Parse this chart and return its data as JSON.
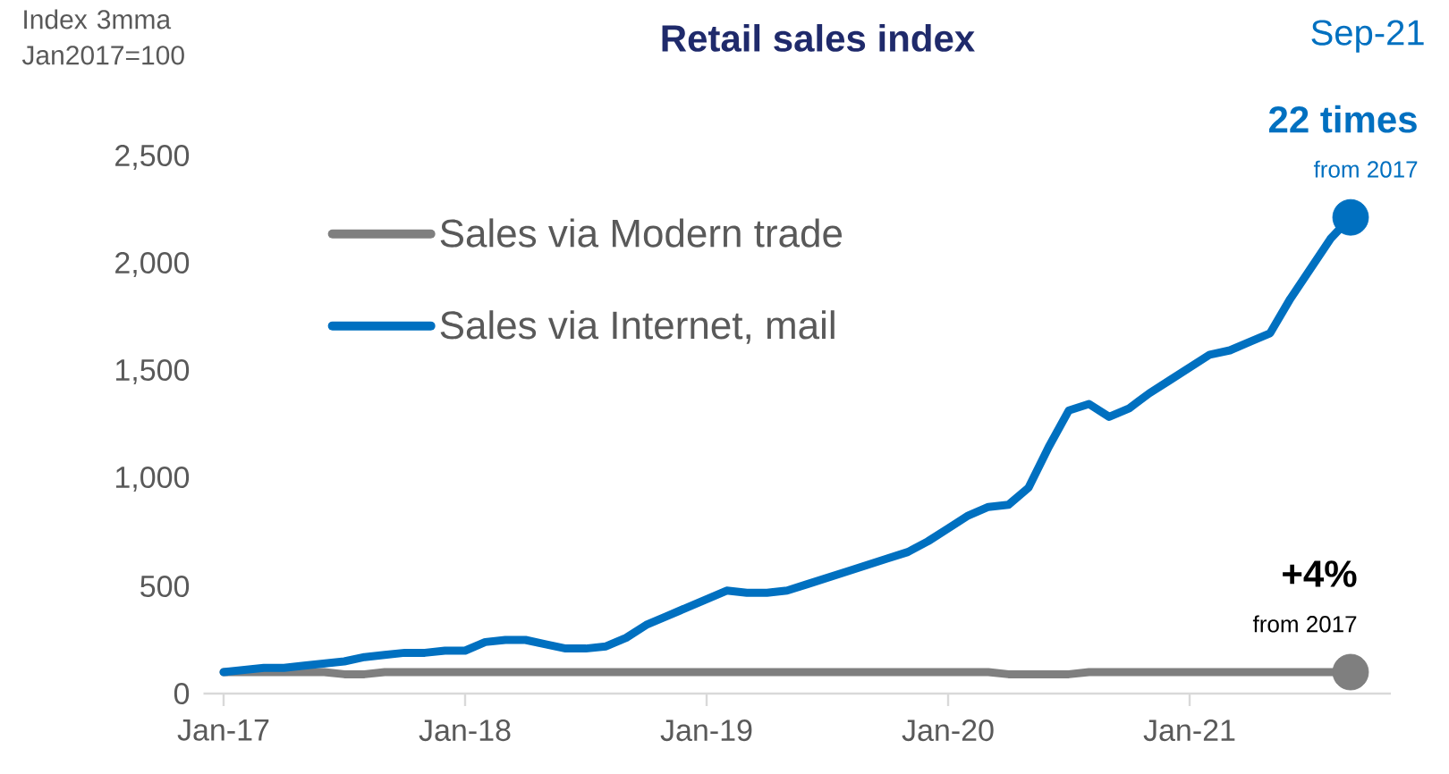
{
  "chart_data": {
    "type": "line",
    "title": "Retail sales index",
    "ylabel": "Index 3mma Jan2017=100",
    "x": [
      "2017-01",
      "2017-02",
      "2017-03",
      "2017-04",
      "2017-05",
      "2017-06",
      "2017-07",
      "2017-08",
      "2017-09",
      "2017-10",
      "2017-11",
      "2017-12",
      "2018-01",
      "2018-02",
      "2018-03",
      "2018-04",
      "2018-05",
      "2018-06",
      "2018-07",
      "2018-08",
      "2018-09",
      "2018-10",
      "2018-11",
      "2018-12",
      "2019-01",
      "2019-02",
      "2019-03",
      "2019-04",
      "2019-05",
      "2019-06",
      "2019-07",
      "2019-08",
      "2019-09",
      "2019-10",
      "2019-11",
      "2019-12",
      "2020-01",
      "2020-02",
      "2020-03",
      "2020-04",
      "2020-05",
      "2020-06",
      "2020-07",
      "2020-08",
      "2020-09",
      "2020-10",
      "2020-11",
      "2020-12",
      "2021-01",
      "2021-02",
      "2021-03",
      "2021-04",
      "2021-05",
      "2021-06",
      "2021-07",
      "2021-08",
      "2021-09"
    ],
    "series": [
      {
        "name": "Sales via  Modern trade",
        "color": "#7f7f7f",
        "values": [
          100,
          100,
          100,
          100,
          100,
          100,
          90,
          90,
          100,
          100,
          100,
          100,
          100,
          100,
          100,
          100,
          100,
          100,
          100,
          100,
          100,
          100,
          100,
          100,
          100,
          100,
          100,
          100,
          100,
          100,
          100,
          100,
          100,
          100,
          100,
          100,
          100,
          100,
          100,
          90,
          90,
          90,
          90,
          100,
          100,
          100,
          100,
          100,
          100,
          100,
          100,
          100,
          100,
          100,
          100,
          100,
          100
        ]
      },
      {
        "name": "Sales via Internet, mail",
        "color": "#0070c0",
        "values": [
          100,
          110,
          120,
          120,
          130,
          140,
          150,
          170,
          180,
          190,
          190,
          200,
          200,
          240,
          250,
          250,
          230,
          210,
          210,
          220,
          260,
          320,
          360,
          400,
          440,
          480,
          470,
          470,
          480,
          510,
          540,
          570,
          600,
          630,
          660,
          710,
          770,
          830,
          870,
          880,
          960,
          1150,
          1320,
          1350,
          1290,
          1330,
          1400,
          1460,
          1520,
          1580,
          1600,
          1640,
          1680,
          1840,
          1980,
          2120,
          2220
        ]
      }
    ],
    "xlim": [
      "2016-12",
      "2021-11"
    ],
    "xticks": [
      {
        "value": "2017-01",
        "label": "Jan-17"
      },
      {
        "value": "2018-01",
        "label": "Jan-18"
      },
      {
        "value": "2019-01",
        "label": "Jan-19"
      },
      {
        "value": "2020-01",
        "label": "Jan-20"
      },
      {
        "value": "2021-01",
        "label": "Jan-21"
      }
    ],
    "ylim": [
      0,
      2500
    ],
    "yticks": [
      0,
      500,
      {
        "value": 1000,
        "label": "1,000"
      },
      {
        "value": 1500,
        "label": "1,500"
      },
      {
        "value": 2000,
        "label": "2,000"
      },
      {
        "value": 2500,
        "label": "2,500"
      }
    ],
    "legend": "top left",
    "grid": false,
    "line_style": "solid",
    "annotations": [
      "Sep-21",
      {
        "text": "**22 times**",
        "x": "2021-09",
        "y": 2220
      },
      {
        "text": "from 2017",
        "x": "2021-09",
        "y": 2220
      },
      {
        "text": "**+4%**",
        "x": "2021-09",
        "y": 100
      },
      {
        "text": "from 2017",
        "x": "2021-09",
        "y": 100
      }
    ]
  }
}
